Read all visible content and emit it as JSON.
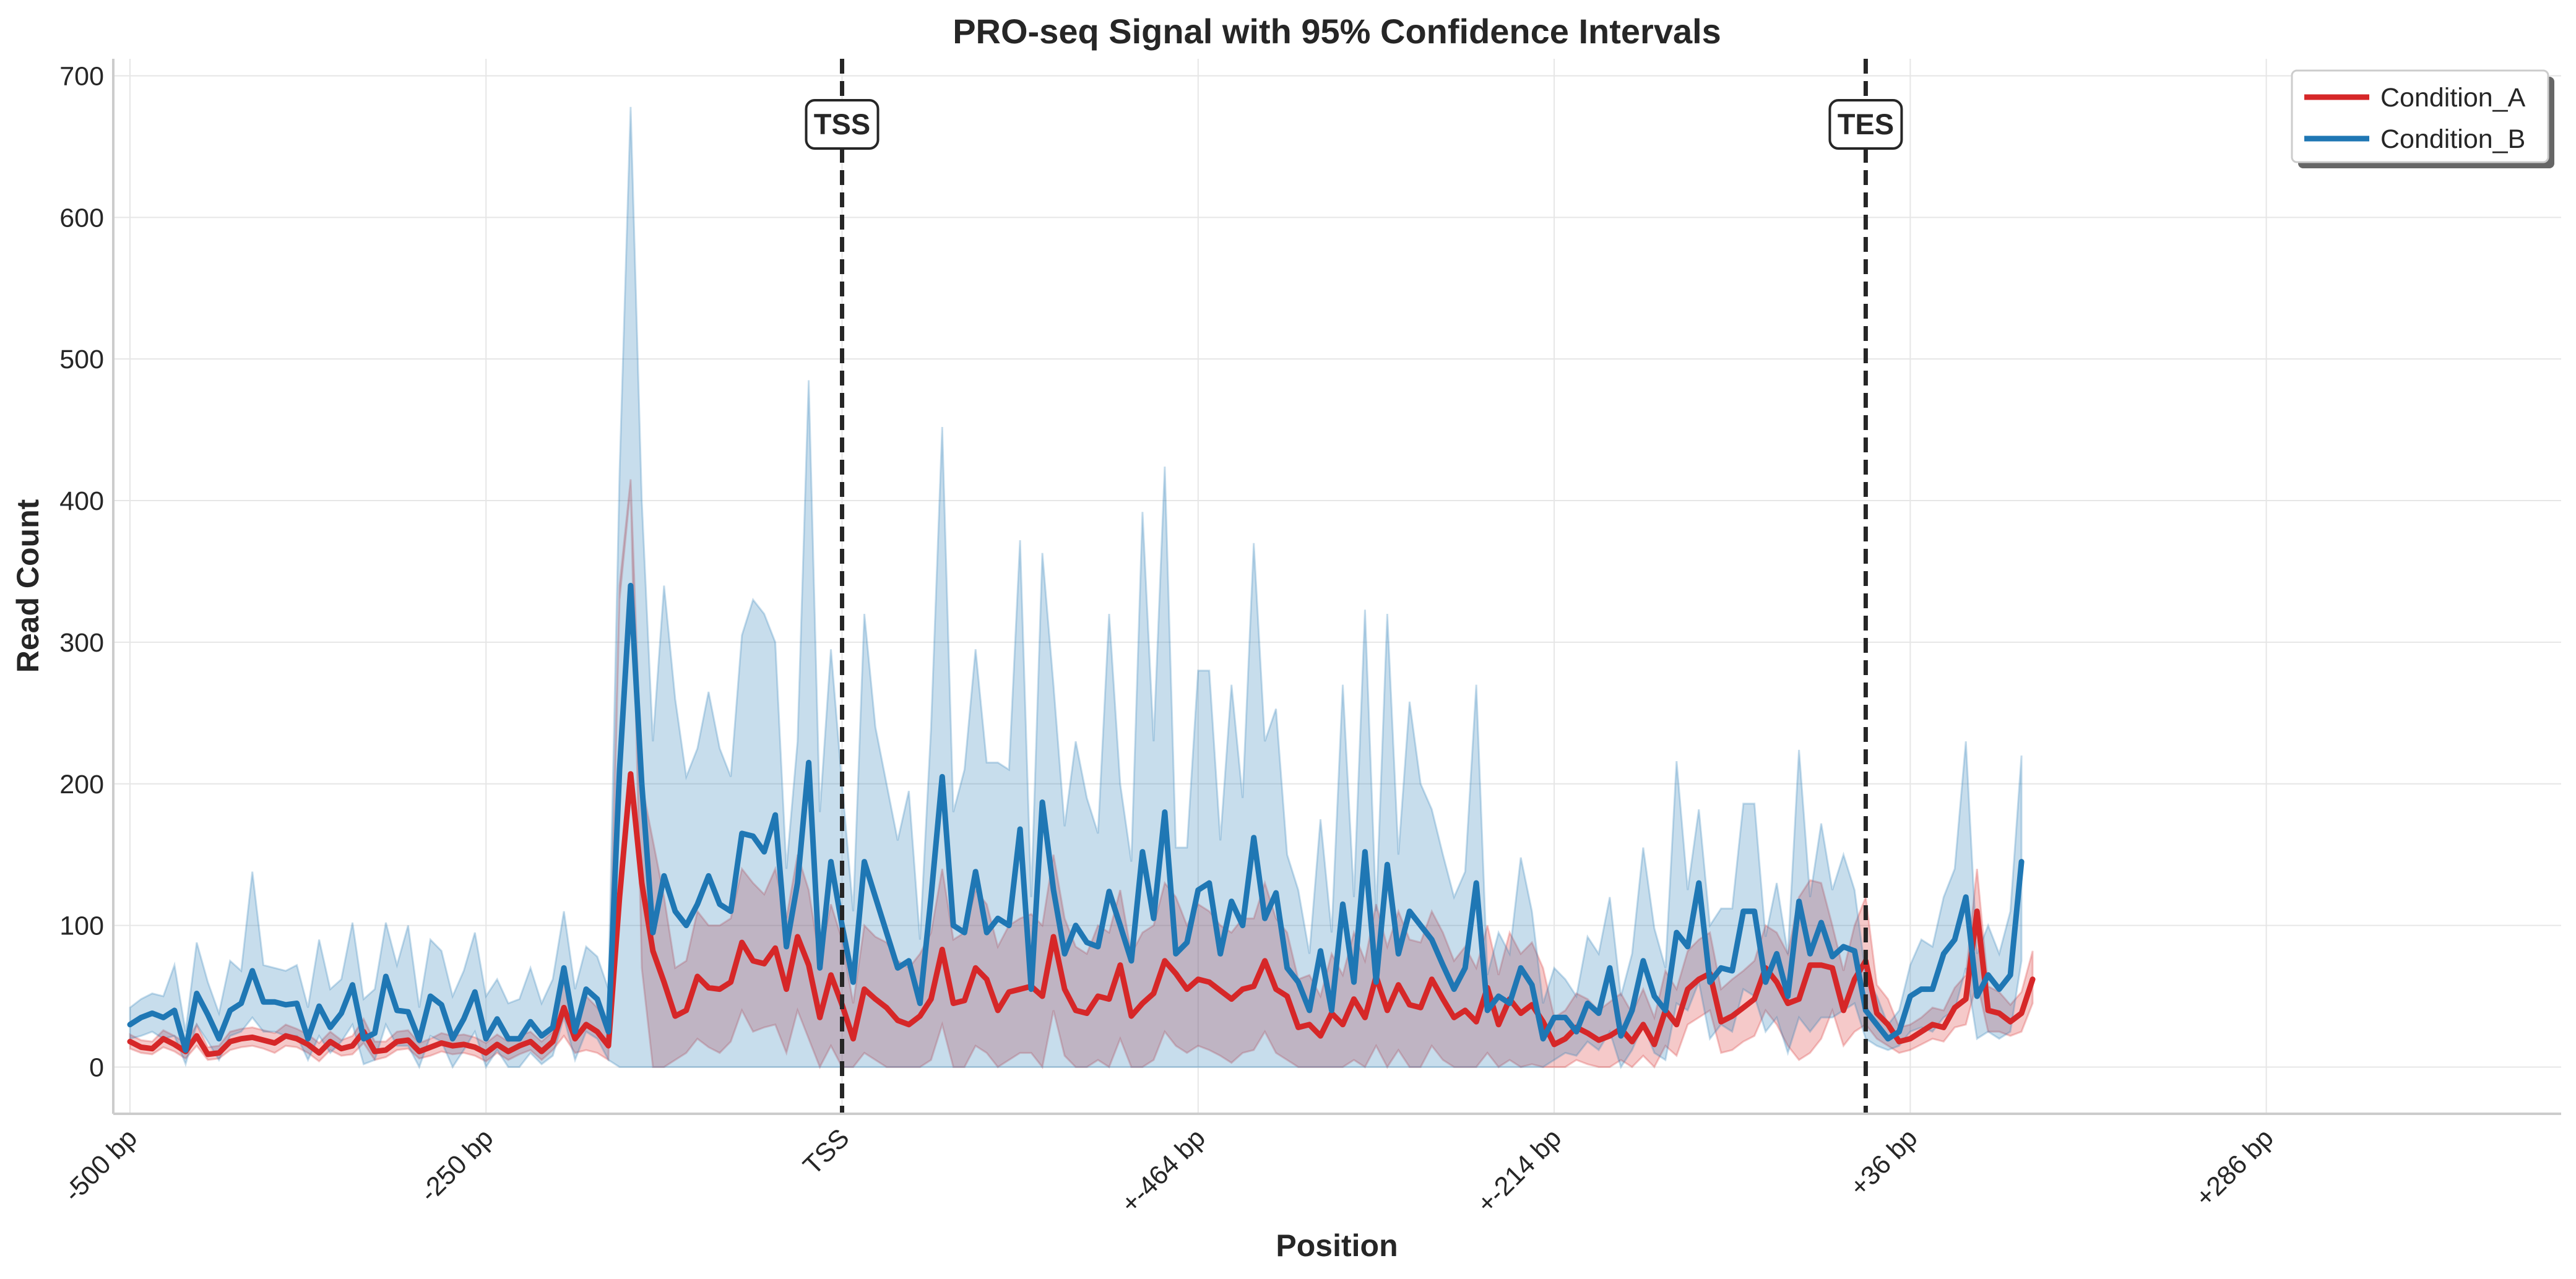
{
  "chart_data": {
    "type": "line",
    "title": "PRO-seq Signal with 95% Confidence Intervals",
    "xlabel": "Position",
    "ylabel": "Read Count",
    "ylim": [
      -33,
      712
    ],
    "xlim": [
      -1.5,
      218.5
    ],
    "grid": true,
    "legend_placement": "top-right",
    "x_ticks": [
      {
        "index": 0,
        "label": "-500 bp"
      },
      {
        "index": 32,
        "label": "-250 bp"
      },
      {
        "index": 64,
        "label": "TSS"
      },
      {
        "index": 96,
        "label": "+-464 bp"
      },
      {
        "index": 128,
        "label": "+-214 bp"
      },
      {
        "index": 160,
        "label": "+36 bp"
      },
      {
        "index": 192,
        "label": "+286 bp"
      }
    ],
    "y_ticks": [
      0,
      100,
      200,
      300,
      400,
      500,
      600,
      700
    ],
    "annotations": [
      {
        "label": "TSS",
        "index": 64
      },
      {
        "label": "TES",
        "index": 156
      }
    ],
    "series": [
      {
        "name": "Condition_A",
        "color": "#d62728",
        "band_color": "#f2b5b6",
        "values": [
          18,
          14,
          13,
          20,
          16,
          11,
          22,
          9,
          10,
          18,
          20,
          21,
          19,
          17,
          22,
          20,
          16,
          10,
          18,
          13,
          15,
          25,
          11,
          12,
          18,
          19,
          11,
          14,
          17,
          15,
          16,
          14,
          10,
          16,
          11,
          15,
          18,
          11,
          18,
          42,
          20,
          30,
          25,
          15,
          120,
          207,
          130,
          82,
          60,
          36,
          40,
          64,
          56,
          55,
          60,
          88,
          75,
          73,
          84,
          55,
          92,
          72,
          35,
          65,
          44,
          20,
          55,
          48,
          42,
          33,
          30,
          36,
          48,
          83,
          45,
          47,
          70,
          62,
          40,
          53,
          55,
          57,
          50,
          92,
          55,
          40,
          38,
          50,
          48,
          72,
          36,
          45,
          52,
          75,
          66,
          55,
          62,
          60,
          54,
          48,
          55,
          57,
          75,
          55,
          50,
          28,
          30,
          22,
          38,
          30,
          48,
          35,
          64,
          40,
          58,
          44,
          42,
          62,
          48,
          35,
          40,
          32,
          56,
          30,
          48,
          38,
          44,
          32,
          16,
          20,
          28,
          24,
          19,
          22,
          27,
          18,
          30,
          16,
          40,
          30,
          55,
          62,
          66,
          32,
          36,
          42,
          48,
          70,
          60,
          45,
          48,
          72,
          72,
          70,
          40,
          62,
          75,
          38,
          30,
          18,
          20,
          25,
          30,
          28,
          42,
          48,
          110,
          40,
          38,
          32,
          38,
          62
        ],
        "lower": [
          13,
          10,
          9,
          14,
          11,
          6,
          15,
          5,
          6,
          12,
          14,
          15,
          13,
          10,
          15,
          14,
          10,
          4,
          12,
          8,
          9,
          17,
          5,
          7,
          12,
          13,
          6,
          8,
          11,
          9,
          10,
          8,
          4,
          10,
          5,
          9,
          12,
          5,
          12,
          22,
          10,
          12,
          10,
          5,
          330,
          410,
          70,
          0,
          0,
          5,
          10,
          20,
          14,
          10,
          18,
          40,
          25,
          28,
          30,
          10,
          40,
          20,
          0,
          15,
          0,
          0,
          10,
          5,
          0,
          0,
          0,
          0,
          5,
          30,
          0,
          0,
          15,
          10,
          0,
          5,
          10,
          10,
          0,
          40,
          8,
          0,
          0,
          5,
          0,
          20,
          0,
          0,
          5,
          25,
          15,
          10,
          15,
          12,
          8,
          3,
          10,
          12,
          25,
          10,
          5,
          0,
          0,
          0,
          0,
          0,
          5,
          0,
          15,
          0,
          12,
          0,
          0,
          15,
          5,
          0,
          0,
          0,
          10,
          0,
          5,
          0,
          2,
          0,
          0,
          0,
          5,
          2,
          0,
          0,
          5,
          0,
          8,
          0,
          15,
          8,
          30,
          35,
          40,
          10,
          12,
          18,
          22,
          40,
          30,
          15,
          5,
          10,
          20,
          40,
          15,
          25,
          30,
          20,
          15,
          10,
          12,
          16,
          20,
          18,
          28,
          30,
          60,
          25,
          25,
          22,
          25,
          45
        ],
        "upper": [
          23,
          19,
          18,
          26,
          22,
          17,
          30,
          14,
          15,
          25,
          27,
          28,
          26,
          24,
          30,
          27,
          23,
          17,
          25,
          19,
          22,
          34,
          18,
          18,
          25,
          26,
          17,
          20,
          24,
          22,
          23,
          21,
          17,
          23,
          18,
          22,
          25,
          18,
          25,
          62,
          30,
          50,
          42,
          28,
          340,
          415,
          200,
          160,
          120,
          70,
          75,
          110,
          100,
          100,
          105,
          140,
          130,
          122,
          140,
          105,
          150,
          125,
          75,
          115,
          90,
          45,
          100,
          92,
          88,
          75,
          70,
          80,
          95,
          140,
          90,
          95,
          125,
          115,
          85,
          100,
          105,
          108,
          100,
          150,
          105,
          85,
          80,
          100,
          95,
          125,
          80,
          95,
          100,
          130,
          120,
          100,
          115,
          110,
          100,
          95,
          105,
          105,
          130,
          105,
          95,
          62,
          65,
          50,
          80,
          65,
          95,
          75,
          115,
          85,
          110,
          90,
          88,
          110,
          95,
          75,
          85,
          70,
          100,
          65,
          95,
          80,
          88,
          70,
          35,
          40,
          52,
          48,
          40,
          46,
          52,
          38,
          55,
          35,
          68,
          55,
          82,
          90,
          95,
          55,
          62,
          68,
          75,
          100,
          95,
          80,
          120,
          132,
          130,
          100,
          68,
          100,
          120,
          58,
          48,
          28,
          30,
          35,
          42,
          40,
          56,
          65,
          140,
          57,
          53,
          44,
          53,
          82
        ]
      },
      {
        "name": "Condition_B",
        "color": "#1f77b4",
        "band_color": "#bcd5ea",
        "values": [
          30,
          35,
          38,
          35,
          40,
          12,
          52,
          37,
          20,
          40,
          45,
          68,
          46,
          46,
          44,
          45,
          20,
          43,
          28,
          38,
          58,
          20,
          24,
          64,
          40,
          39,
          19,
          50,
          44,
          20,
          34,
          53,
          20,
          34,
          20,
          20,
          32,
          22,
          28,
          70,
          25,
          55,
          48,
          25,
          210,
          340,
          200,
          95,
          135,
          110,
          100,
          115,
          135,
          115,
          110,
          165,
          163,
          152,
          178,
          85,
          130,
          215,
          70,
          145,
          100,
          60,
          145,
          120,
          95,
          70,
          75,
          45,
          120,
          205,
          100,
          95,
          138,
          95,
          105,
          100,
          168,
          55,
          187,
          125,
          80,
          100,
          88,
          85,
          124,
          100,
          75,
          152,
          105,
          180,
          80,
          88,
          125,
          130,
          80,
          117,
          100,
          162,
          105,
          123,
          70,
          60,
          40,
          82,
          40,
          115,
          60,
          152,
          60,
          143,
          80,
          110,
          100,
          90,
          72,
          55,
          70,
          130,
          40,
          50,
          45,
          70,
          58,
          20,
          35,
          35,
          25,
          45,
          38,
          70,
          22,
          40,
          75,
          50,
          40,
          95,
          85,
          130,
          60,
          70,
          68,
          110,
          110,
          60,
          80,
          50,
          117,
          80,
          102,
          78,
          85,
          82,
          40,
          30,
          20,
          25,
          50,
          55,
          55,
          80,
          90,
          120,
          50,
          65,
          55,
          65,
          145
        ],
        "lower": [
          20,
          22,
          25,
          20,
          22,
          2,
          30,
          18,
          5,
          22,
          25,
          35,
          25,
          25,
          22,
          22,
          5,
          22,
          10,
          18,
          30,
          2,
          5,
          30,
          15,
          15,
          0,
          22,
          18,
          0,
          12,
          25,
          0,
          12,
          0,
          0,
          10,
          2,
          8,
          35,
          5,
          25,
          20,
          5,
          0,
          0,
          0,
          0,
          0,
          0,
          0,
          0,
          0,
          0,
          0,
          0,
          0,
          0,
          0,
          0,
          0,
          0,
          0,
          0,
          0,
          0,
          0,
          0,
          0,
          0,
          0,
          0,
          0,
          0,
          0,
          0,
          0,
          0,
          0,
          0,
          0,
          0,
          0,
          0,
          0,
          0,
          0,
          0,
          0,
          0,
          0,
          0,
          0,
          0,
          0,
          0,
          0,
          0,
          0,
          0,
          0,
          0,
          0,
          0,
          0,
          0,
          0,
          0,
          0,
          0,
          0,
          0,
          0,
          0,
          0,
          0,
          0,
          0,
          0,
          0,
          0,
          0,
          0,
          0,
          0,
          0,
          0,
          0,
          5,
          10,
          8,
          18,
          12,
          25,
          0,
          12,
          30,
          10,
          5,
          45,
          40,
          60,
          20,
          30,
          25,
          55,
          50,
          25,
          35,
          10,
          35,
          25,
          35,
          35,
          40,
          45,
          20,
          15,
          12,
          15,
          25,
          28,
          25,
          35,
          40,
          70,
          20,
          25,
          20,
          25,
          75
        ],
        "upper": [
          42,
          48,
          52,
          50,
          72,
          25,
          88,
          60,
          38,
          75,
          68,
          138,
          72,
          70,
          68,
          72,
          42,
          90,
          55,
          62,
          102,
          48,
          55,
          102,
          72,
          100,
          42,
          90,
          82,
          50,
          68,
          95,
          50,
          62,
          45,
          48,
          70,
          45,
          62,
          110,
          55,
          85,
          78,
          55,
          420,
          678,
          400,
          230,
          340,
          260,
          205,
          225,
          265,
          225,
          205,
          305,
          330,
          320,
          300,
          140,
          230,
          485,
          180,
          295,
          200,
          110,
          320,
          240,
          200,
          160,
          195,
          90,
          240,
          452,
          180,
          210,
          295,
          215,
          215,
          210,
          372,
          120,
          363,
          270,
          170,
          230,
          190,
          165,
          320,
          200,
          145,
          392,
          230,
          424,
          155,
          155,
          280,
          280,
          160,
          270,
          190,
          370,
          230,
          253,
          150,
          125,
          80,
          175,
          95,
          270,
          120,
          323,
          110,
          320,
          150,
          258,
          200,
          182,
          150,
          120,
          138,
          270,
          65,
          95,
          80,
          148,
          110,
          45,
          70,
          62,
          50,
          92,
          80,
          120,
          50,
          80,
          155,
          98,
          70,
          216,
          125,
          182,
          100,
          112,
          112,
          186,
          186,
          92,
          130,
          80,
          224,
          120,
          172,
          125,
          150,
          125,
          65,
          50,
          30,
          40,
          72,
          90,
          85,
          120,
          140,
          230,
          80,
          100,
          80,
          110,
          220
        ]
      }
    ]
  }
}
